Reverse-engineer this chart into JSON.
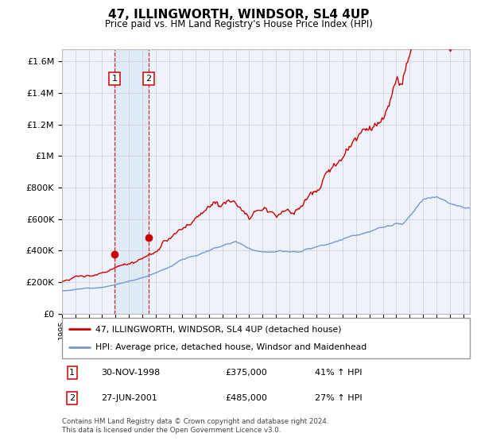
{
  "title": "47, ILLINGWORTH, WINDSOR, SL4 4UP",
  "subtitle": "Price paid vs. HM Land Registry's House Price Index (HPI)",
  "ylabel_ticks": [
    "£0",
    "£200K",
    "£400K",
    "£600K",
    "£800K",
    "£1M",
    "£1.2M",
    "£1.4M",
    "£1.6M"
  ],
  "ytick_values": [
    0,
    200000,
    400000,
    600000,
    800000,
    1000000,
    1200000,
    1400000,
    1600000
  ],
  "ylim": [
    0,
    1680000
  ],
  "xlim_start": 1995.0,
  "xlim_end": 2025.5,
  "legend_line1": "47, ILLINGWORTH, WINDSOR, SL4 4UP (detached house)",
  "legend_line2": "HPI: Average price, detached house, Windsor and Maidenhead",
  "sale1_date": 1998.92,
  "sale1_price": 375000,
  "sale2_date": 2001.49,
  "sale2_price": 485000,
  "footnote": "Contains HM Land Registry data © Crown copyright and database right 2024.\nThis data is licensed under the Open Government Licence v3.0.",
  "red_color": "#cc0000",
  "blue_color": "#7799cc",
  "background_color": "#eef2fa",
  "grid_color": "#cccccc"
}
